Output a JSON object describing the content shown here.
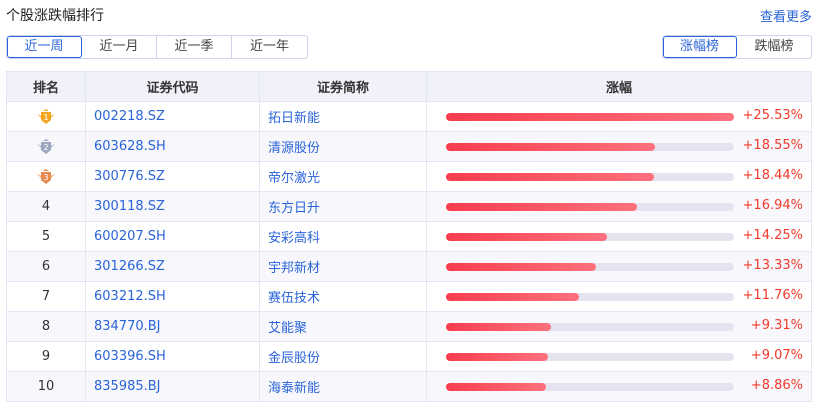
{
  "header": {
    "title": "个股涨跌幅排行",
    "more": "查看更多"
  },
  "periods": [
    {
      "label": "近一周",
      "active": true
    },
    {
      "label": "近一月"
    },
    {
      "label": "近一季"
    },
    {
      "label": "近一年"
    }
  ],
  "kind": [
    {
      "label": "涨幅榜",
      "active": true
    },
    {
      "label": "跌幅榜"
    }
  ],
  "table": {
    "columns": [
      "排名",
      "证券代码",
      "证券简称",
      "涨幅"
    ],
    "rows": [
      {
        "rank": "1",
        "medal": "gold",
        "code": "002218.SZ",
        "name": "拓日新能",
        "change": "+25.53%",
        "value": 25.53
      },
      {
        "rank": "2",
        "medal": "silver",
        "code": "603628.SH",
        "name": "清源股份",
        "change": "+18.55%",
        "value": 18.55
      },
      {
        "rank": "3",
        "medal": "bronze",
        "code": "300776.SZ",
        "name": "帝尔激光",
        "change": "+18.44%",
        "value": 18.44
      },
      {
        "rank": "4",
        "code": "300118.SZ",
        "name": "东方日升",
        "change": "+16.94%",
        "value": 16.94
      },
      {
        "rank": "5",
        "code": "600207.SH",
        "name": "安彩高科",
        "change": "+14.25%",
        "value": 14.25
      },
      {
        "rank": "6",
        "code": "301266.SZ",
        "name": "宇邦新材",
        "change": "+13.33%",
        "value": 13.33
      },
      {
        "rank": "7",
        "code": "603212.SH",
        "name": "赛伍技术",
        "change": "+11.76%",
        "value": 11.76
      },
      {
        "rank": "8",
        "code": "834770.BJ",
        "name": "艾能聚",
        "change": "+9.31%",
        "value": 9.31
      },
      {
        "rank": "9",
        "code": "603396.SH",
        "name": "金辰股份",
        "change": "+9.07%",
        "value": 9.07
      },
      {
        "rank": "10",
        "code": "835985.BJ",
        "name": "海泰新能",
        "change": "+8.86%",
        "value": 8.86
      }
    ]
  },
  "colors": {
    "accent": "#2a64d8",
    "up": "#f23a2a",
    "gold": "#f0a623",
    "silver": "#9aa9bd",
    "bronze": "#e68a4e"
  }
}
